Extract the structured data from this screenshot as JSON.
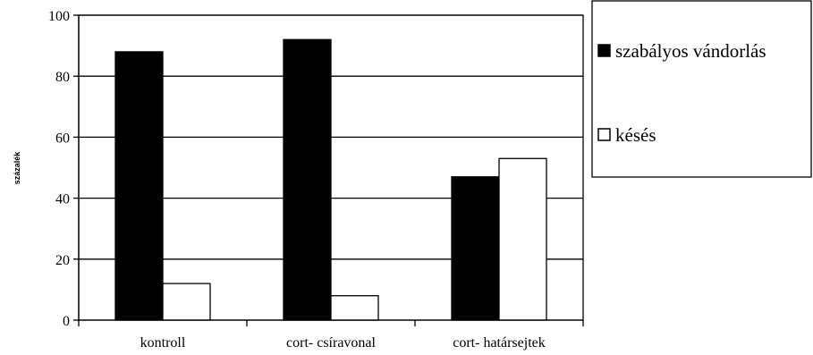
{
  "chart_data": {
    "type": "bar",
    "categories": [
      "kontroll",
      "cort- csíravonal",
      "cort- határsejtek"
    ],
    "series": [
      {
        "name": "szabályos vándorlás",
        "values": [
          88,
          92,
          47
        ],
        "color": "#000000"
      },
      {
        "name": "késés",
        "values": [
          12,
          8,
          53
        ],
        "color": "#ffffff"
      }
    ],
    "ylim": [
      0,
      100
    ],
    "yticks": [
      0,
      20,
      40,
      60,
      80,
      100
    ],
    "ylabel": "százalék",
    "xlabel": "",
    "grid": true,
    "legend_position": "right"
  }
}
